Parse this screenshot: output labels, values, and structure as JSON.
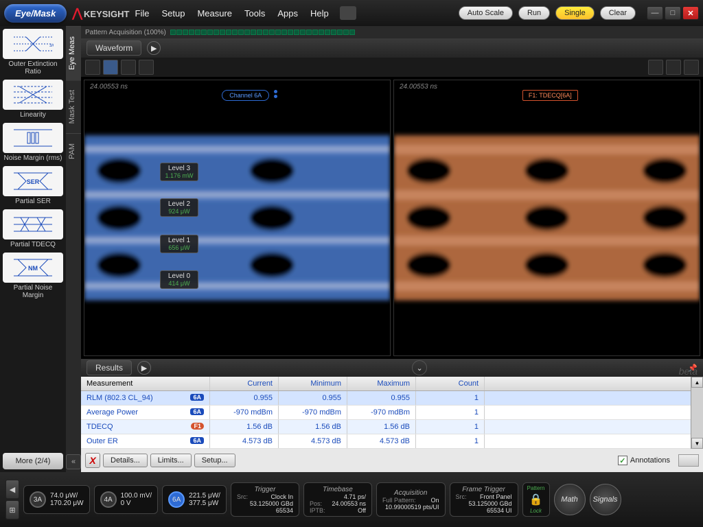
{
  "app": {
    "mode": "Eye/Mask",
    "brand": "KEYSIGHT"
  },
  "menu": [
    "File",
    "Setup",
    "Measure",
    "Tools",
    "Apps",
    "Help"
  ],
  "topbtns": {
    "auto": "Auto Scale",
    "run": "Run",
    "single": "Single",
    "clear": "Clear"
  },
  "sidebar": [
    {
      "label": "Outer Extinction Ratio",
      "tag": "3/0"
    },
    {
      "label": "Linearity"
    },
    {
      "label": "Noise Margin (rms)"
    },
    {
      "label": "Partial SER",
      "txt": "SER"
    },
    {
      "label": "Partial TDECQ"
    },
    {
      "label": "Partial Noise Margin",
      "txt": "NM"
    }
  ],
  "more": "More (2/4)",
  "vtabs": [
    "Eye Meas",
    "Mask Test",
    "PAM"
  ],
  "pattern": "Pattern Acquisition   (100%)",
  "waveform": "Waveform",
  "graphs": {
    "ts": "24.00553 ns",
    "channel": "Channel 6A",
    "func": "F1: TDECQ[6A]",
    "levels": [
      {
        "n": "Level 3",
        "v": "1.176 mW",
        "y": 30
      },
      {
        "n": "Level 2",
        "v": "924 μW",
        "y": 43
      },
      {
        "n": "Level 1",
        "v": "656 μW",
        "y": 56
      },
      {
        "n": "Level 0",
        "v": "414 μW",
        "y": 69
      }
    ],
    "colors": {
      "left": "#5a9aff",
      "right": "#ff9a6a"
    }
  },
  "results": {
    "title": "Results",
    "cols": [
      "Measurement",
      "Current",
      "Minimum",
      "Maximum",
      "Count"
    ],
    "rows": [
      {
        "m": "RLM (802.3 CL_94)",
        "b": "6A",
        "c": "0.955",
        "min": "0.955",
        "max": "0.955",
        "cnt": "1",
        "sel": true
      },
      {
        "m": "Average Power",
        "b": "6A",
        "c": "-970 mdBm",
        "min": "-970 mdBm",
        "max": "-970 mdBm",
        "cnt": "1"
      },
      {
        "m": "TDECQ",
        "b": "F1",
        "bt": "f1",
        "c": "1.56 dB",
        "min": "1.56 dB",
        "max": "1.56 dB",
        "cnt": "1"
      },
      {
        "m": "Outer ER",
        "b": "6A",
        "c": "4.573 dB",
        "min": "4.573 dB",
        "max": "4.573 dB",
        "cnt": "1"
      }
    ],
    "btns": [
      "Details...",
      "Limits...",
      "Setup..."
    ],
    "annot": "Annotations"
  },
  "bottom": {
    "ch3": {
      "id": "3A",
      "l1": "74.0 μW/",
      "l2": "170.20 μW"
    },
    "ch4": {
      "id": "4A",
      "l1": "100.0 mV/",
      "l2": "0 V"
    },
    "ch6": {
      "id": "6A",
      "l1": "221.5 μW/",
      "l2": "377.5 μW"
    },
    "trigger": {
      "t": "Trigger",
      "r": [
        [
          "Src:",
          "Clock In"
        ],
        [
          "",
          "53.125000 GBd"
        ],
        [
          "",
          "65534"
        ]
      ]
    },
    "timebase": {
      "t": "Timebase",
      "r": [
        [
          "",
          "4.71 ps/"
        ],
        [
          "Pos:",
          "24.00553 ns"
        ],
        [
          "IPTB:",
          "Off"
        ]
      ]
    },
    "acq": {
      "t": "Acquisition",
      "r": [
        [
          "Full Pattern:",
          "On"
        ],
        [
          "",
          "10.99000519 pts/UI"
        ]
      ]
    },
    "ftrig": {
      "t": "Frame Trigger",
      "r": [
        [
          "Src:",
          "Front Panel"
        ],
        [
          "",
          "53.125000 GBd"
        ],
        [
          "",
          "65534 UI"
        ]
      ]
    },
    "pattern": "Pattern",
    "lock": "Lock",
    "math": "Math",
    "signals": "Signals"
  }
}
